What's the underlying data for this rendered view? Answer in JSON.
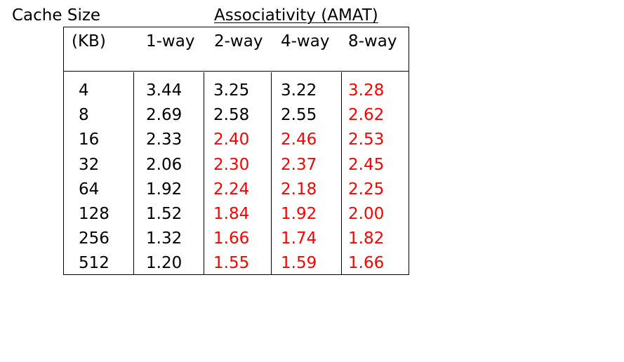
{
  "titles": {
    "cache_size": "Cache Size",
    "associativity": "Associativity (AMAT)"
  },
  "header": {
    "unit": "(KB)",
    "columns": [
      "1-way",
      "2-way",
      "4-way",
      "8-way"
    ]
  },
  "highlight_color": "#ff0000",
  "text_color": "#000000",
  "rows": [
    {
      "size": "4",
      "values": [
        "3.44",
        "3.25",
        "3.22",
        "3.28"
      ],
      "red": [
        false,
        false,
        false,
        true
      ]
    },
    {
      "size": "8",
      "values": [
        "2.69",
        "2.58",
        "2.55",
        "2.62"
      ],
      "red": [
        false,
        false,
        false,
        true
      ]
    },
    {
      "size": "16",
      "values": [
        "2.33",
        "2.40",
        "2.46",
        "2.53"
      ],
      "red": [
        false,
        true,
        true,
        true
      ]
    },
    {
      "size": "32",
      "values": [
        "2.06",
        "2.30",
        "2.37",
        "2.45"
      ],
      "red": [
        false,
        true,
        true,
        true
      ]
    },
    {
      "size": "64",
      "values": [
        "1.92",
        "2.24",
        "2.18",
        "2.25"
      ],
      "red": [
        false,
        true,
        true,
        true
      ]
    },
    {
      "size": "128",
      "values": [
        "1.52",
        "1.84",
        "1.92",
        "2.00"
      ],
      "red": [
        false,
        true,
        true,
        true
      ]
    },
    {
      "size": "256",
      "values": [
        "1.32",
        "1.66",
        "1.74",
        "1.82"
      ],
      "red": [
        false,
        true,
        true,
        true
      ]
    },
    {
      "size": "512",
      "values": [
        "1.20",
        "1.55",
        "1.59",
        "1.66"
      ],
      "red": [
        false,
        true,
        true,
        true
      ]
    }
  ]
}
